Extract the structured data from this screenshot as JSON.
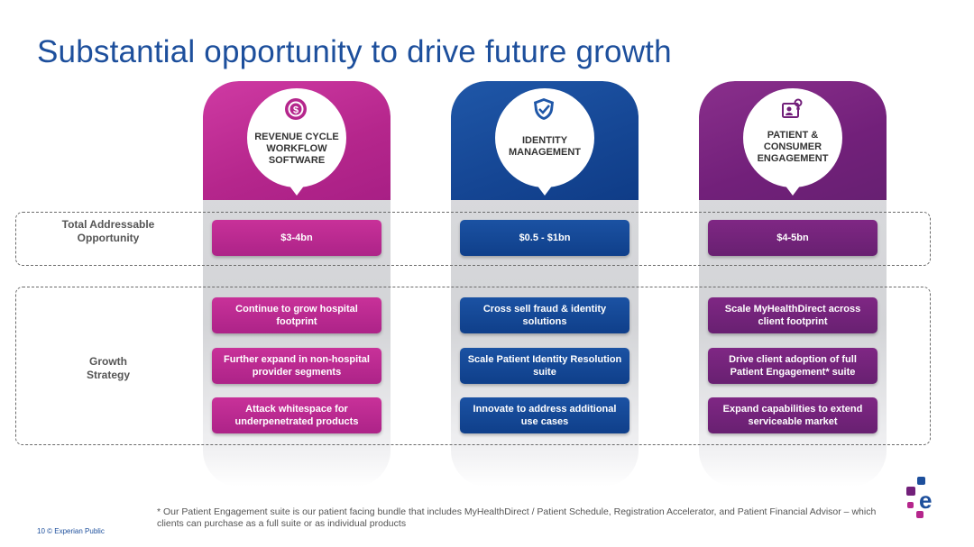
{
  "title": "Substantial opportunity to drive future growth",
  "row_labels": {
    "tam": "Total Addressable Opportunity",
    "growth": "Growth Strategy"
  },
  "columns": [
    {
      "heading": "REVENUE CYCLE WORKFLOW SOFTWARE",
      "icon": "dollar-gear-icon",
      "color": "#b5268c",
      "tam": "$3-4bn",
      "strategies": [
        "Continue to grow hospital footprint",
        "Further expand in non-hospital provider segments",
        "Attack whitespace for underpenetrated products"
      ]
    },
    {
      "heading": "IDENTITY MANAGEMENT",
      "icon": "shield-check-icon",
      "color": "#154694",
      "tam": "$0.5 - $1bn",
      "strategies": [
        "Cross sell fraud & identity solutions",
        "Scale Patient Identity Resolution suite",
        "Innovate to address additional use cases"
      ]
    },
    {
      "heading": "PATIENT & CONSUMER ENGAGEMENT",
      "icon": "patient-badge-icon",
      "color": "#72207a",
      "tam": "$4-5bn",
      "strategies": [
        "Scale MyHealthDirect across client footprint",
        "Drive client adoption of full Patient Engagement* suite",
        "Expand capabilities to extend serviceable market"
      ]
    }
  ],
  "footnote": "* Our Patient Engagement suite is our patient facing bundle that includes MyHealthDirect / Patient Schedule, Registration Accelerator, and Patient Financial Advisor – which clients can purchase as a full suite or as individual products",
  "footer": "10   © Experian Public"
}
